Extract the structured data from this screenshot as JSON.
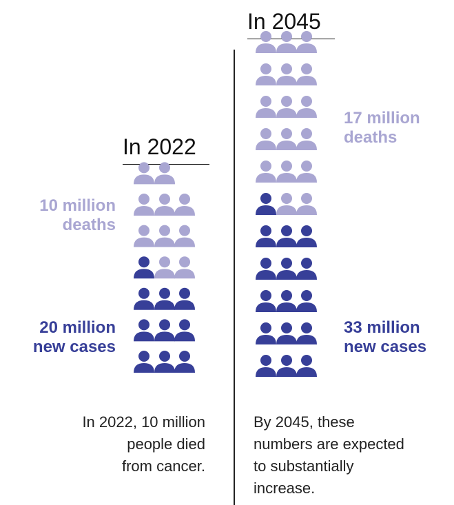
{
  "colors": {
    "deaths": "#a9a6d2",
    "cases": "#373f98"
  },
  "panels": [
    {
      "heading": "In 2022",
      "icons_total": 20,
      "icons_deaths": 10,
      "deaths_label": [
        "10 million",
        "deaths"
      ],
      "cases_label": [
        "20 million",
        "new cases"
      ],
      "description": [
        "In 2022, 10 million",
        "people died",
        "from cancer."
      ]
    },
    {
      "heading": "In 2045",
      "icons_total": 33,
      "icons_deaths": 17,
      "deaths_label": [
        "17 million",
        "deaths"
      ],
      "cases_label": [
        "33 million",
        "new cases"
      ],
      "description": [
        "By 2045, these",
        "numbers are expected",
        "to substantially",
        "increase."
      ]
    }
  ],
  "chart_data": {
    "type": "pictogram",
    "unit": "1 icon = 1 million",
    "categories": [
      "In 2022",
      "In 2045"
    ],
    "series": [
      {
        "name": "deaths",
        "values": [
          10,
          17
        ]
      },
      {
        "name": "new cases",
        "values": [
          20,
          33
        ]
      }
    ]
  }
}
